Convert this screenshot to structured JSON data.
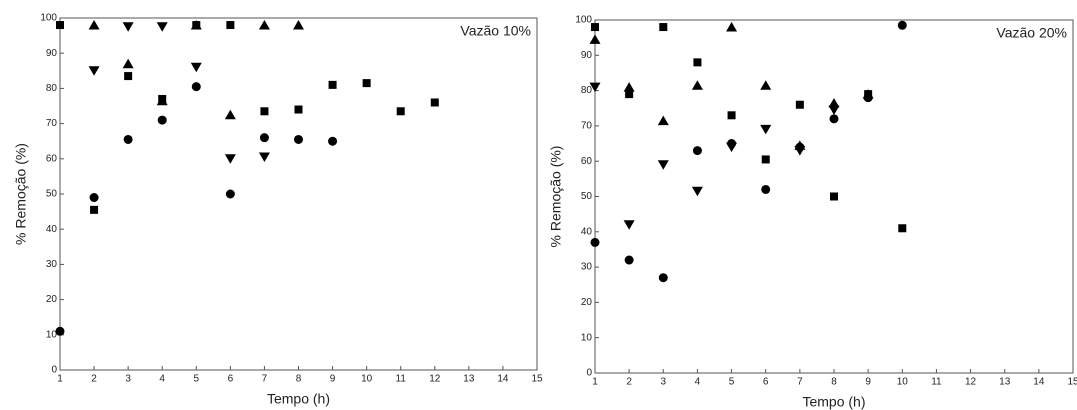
{
  "chart_data": [
    {
      "type": "scatter",
      "annotation": "Vazão 10%",
      "xlabel": "Tempo (h)",
      "ylabel": "% Remoção (%)",
      "xlim": [
        1,
        15
      ],
      "xticks": [
        1,
        2,
        3,
        4,
        5,
        6,
        7,
        8,
        9,
        10,
        11,
        12,
        13,
        14,
        15
      ],
      "ylim": [
        0,
        100
      ],
      "yticks": [
        0,
        10,
        20,
        30,
        40,
        50,
        60,
        70,
        80,
        90,
        100
      ],
      "series": [
        {
          "marker": "square",
          "color": "#000000",
          "x": [
            1,
            2,
            3,
            4,
            5,
            6,
            7,
            8,
            9,
            10,
            11,
            12
          ],
          "values": [
            98,
            45.5,
            83.5,
            77,
            98,
            98,
            73.5,
            74,
            81,
            81.5,
            73.5,
            76
          ]
        },
        {
          "marker": "circle",
          "color": "#000000",
          "x": [
            1,
            2,
            3,
            4,
            5,
            6,
            7,
            8,
            9
          ],
          "values": [
            11,
            49,
            65.5,
            71,
            80.5,
            50,
            66,
            65.5,
            65
          ]
        },
        {
          "marker": "triangle-up",
          "color": "#000000",
          "x": [
            2,
            3,
            4,
            5,
            6,
            7,
            8
          ],
          "values": [
            98,
            87,
            76.5,
            98,
            72.5,
            98,
            98
          ]
        },
        {
          "marker": "triangle-down",
          "color": "#000000",
          "x": [
            2,
            3,
            4,
            5,
            6,
            7
          ],
          "values": [
            85,
            97.5,
            97.5,
            86,
            60,
            60.5
          ]
        }
      ]
    },
    {
      "type": "scatter",
      "annotation": "Vazão 20%",
      "xlabel": "Tempo (h)",
      "ylabel": "% Remoção (%)",
      "xlim": [
        1,
        15
      ],
      "xticks": [
        1,
        2,
        3,
        4,
        5,
        6,
        7,
        8,
        9,
        10,
        11,
        12,
        13,
        14,
        15
      ],
      "ylim": [
        0,
        100
      ],
      "yticks": [
        0,
        10,
        20,
        30,
        40,
        50,
        60,
        70,
        80,
        90,
        100
      ],
      "series": [
        {
          "marker": "square",
          "color": "#000000",
          "x": [
            1,
            2,
            3,
            4,
            5,
            6,
            7,
            8,
            9,
            10
          ],
          "values": [
            98,
            79,
            98,
            88,
            73,
            60.5,
            76,
            50,
            79,
            41
          ]
        },
        {
          "marker": "circle",
          "color": "#000000",
          "x": [
            1,
            2,
            3,
            4,
            5,
            6,
            7,
            8,
            9,
            10
          ],
          "values": [
            37,
            32,
            27,
            63,
            65,
            52,
            64,
            72,
            78,
            98.5
          ]
        },
        {
          "marker": "triangle-up",
          "color": "#000000",
          "x": [
            1,
            2,
            3,
            4,
            5,
            6,
            7,
            8,
            9
          ],
          "values": [
            94.5,
            81,
            71.5,
            81.5,
            98,
            81.5,
            64.5,
            76.5,
            79
          ]
        },
        {
          "marker": "triangle-down",
          "color": "#000000",
          "x": [
            1,
            2,
            3,
            4,
            5,
            6,
            7,
            8
          ],
          "values": [
            81,
            42,
            59,
            51.5,
            64,
            69,
            63,
            74.5
          ]
        }
      ]
    }
  ]
}
